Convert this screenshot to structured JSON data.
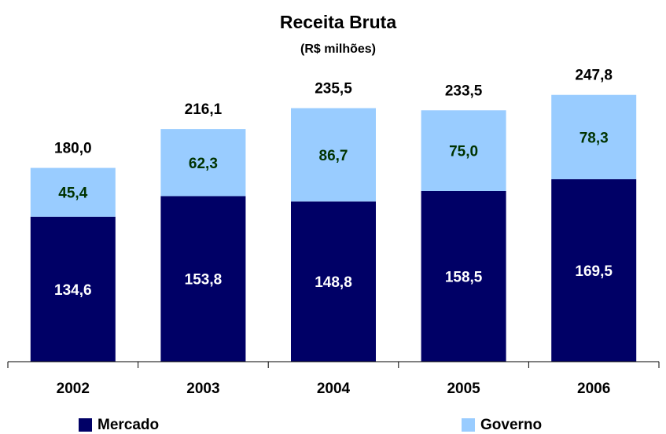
{
  "chart_data": {
    "type": "stacked_bar",
    "title": "Receita Bruta",
    "subtitle": "(R$ milhões)",
    "categories": [
      "2002",
      "2003",
      "2004",
      "2005",
      "2006"
    ],
    "series": [
      {
        "name": "Mercado",
        "color": "#000066",
        "label_color": "#ffffff",
        "values": [
          134.6,
          153.8,
          148.8,
          158.5,
          169.5
        ],
        "value_labels": [
          "134,6",
          "153,8",
          "148,8",
          "158,5",
          "169,5"
        ]
      },
      {
        "name": "Governo",
        "color": "#99ccff",
        "label_color": "#003300",
        "values": [
          45.4,
          62.3,
          86.7,
          75.0,
          78.3
        ],
        "value_labels": [
          "45,4",
          "62,3",
          "86,7",
          "75,0",
          "78,3"
        ]
      }
    ],
    "totals": {
      "values": [
        180.0,
        216.1,
        235.5,
        233.5,
        247.8
      ],
      "value_labels": [
        "180,0",
        "216,1",
        "235,5",
        "233,5",
        "247,8"
      ]
    },
    "ylim": [
      0,
      260
    ],
    "grid": false,
    "legend": "bottom"
  }
}
